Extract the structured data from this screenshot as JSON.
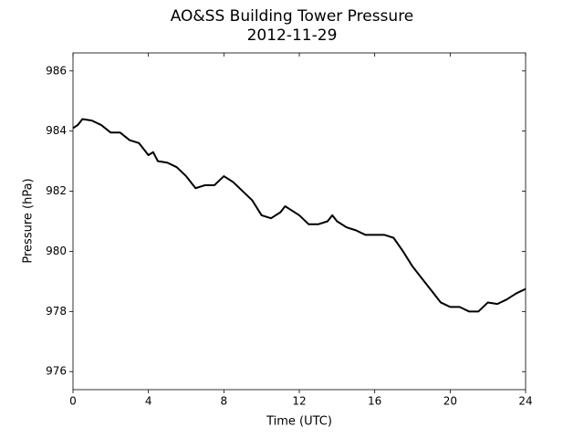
{
  "chart_data": {
    "type": "line",
    "title": "AO&SS Building Tower Pressure",
    "subtitle": "2012-11-29",
    "x_label": "Time (UTC)",
    "y_label": "Pressure (hPa)",
    "x": [
      0,
      0.25,
      0.5,
      1,
      1.5,
      2,
      2.5,
      3,
      3.5,
      4,
      4.25,
      4.5,
      5,
      5.5,
      6,
      6.5,
      7,
      7.5,
      8,
      8.5,
      9,
      9.5,
      10,
      10.5,
      11,
      11.25,
      11.5,
      12,
      12.5,
      13,
      13.5,
      13.75,
      14,
      14.5,
      15,
      15.5,
      16,
      16.5,
      17,
      17.5,
      18,
      18.5,
      19,
      19.5,
      20,
      20.5,
      21,
      21.5,
      22,
      22.5,
      23,
      23.5,
      24
    ],
    "series": [
      {
        "name": "Pressure",
        "color": "#000000",
        "values": [
          984.1,
          984.2,
          984.4,
          984.35,
          984.2,
          983.95,
          983.95,
          983.7,
          983.6,
          983.2,
          983.3,
          983.0,
          982.95,
          982.8,
          982.5,
          982.1,
          982.2,
          982.2,
          982.5,
          982.3,
          982.0,
          981.7,
          981.2,
          981.1,
          981.3,
          981.5,
          981.4,
          981.2,
          980.9,
          980.9,
          981.0,
          981.2,
          981.0,
          980.8,
          980.7,
          980.55,
          980.55,
          980.55,
          980.45,
          980.0,
          979.5,
          979.1,
          978.7,
          978.3,
          978.15,
          978.15,
          978.0,
          978.0,
          978.3,
          978.25,
          978.4,
          978.6,
          978.75
        ]
      }
    ],
    "xlim": [
      0,
      24
    ],
    "xticks": [
      0,
      4,
      8,
      12,
      16,
      20,
      24
    ],
    "ylim": [
      975.4,
      986.6
    ],
    "yticks": [
      976,
      978,
      980,
      982,
      984,
      986
    ],
    "grid": false
  }
}
